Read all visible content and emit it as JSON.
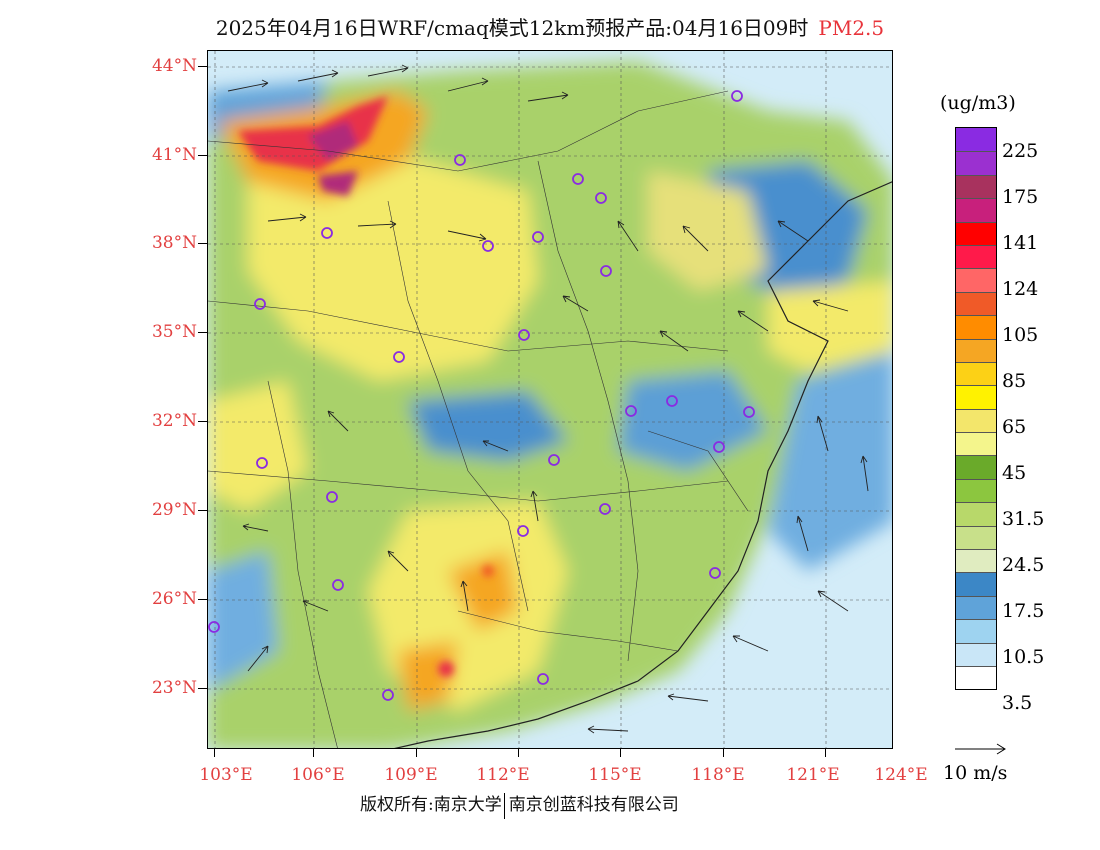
{
  "title": {
    "main": "2025年04月16日WRF/cmaq模式12km预报产品:04月16日09时",
    "pollutant": "PM2.5",
    "pollutant_color": "#e8333a"
  },
  "latitude_labels": [
    "44°N",
    "41°N",
    "38°N",
    "35°N",
    "32°N",
    "29°N",
    "26°N",
    "23°N"
  ],
  "longitude_labels": [
    "103°E",
    "106°E",
    "109°E",
    "112°E",
    "115°E",
    "118°E",
    "121°E",
    "124°E"
  ],
  "legend": {
    "unit": "(ug/m3)",
    "labels": [
      "225",
      "175",
      "141",
      "124",
      "105",
      "85",
      "65",
      "45",
      "31.5",
      "24.5",
      "17.5",
      "10.5",
      "3.5"
    ],
    "colors": [
      "#8a2be2",
      "#9b30d0",
      "#a8325e",
      "#c8207c",
      "#ff0000",
      "#ff1a4a",
      "#ff6666",
      "#f05a28",
      "#ff8c00",
      "#f5a623",
      "#fcd116",
      "#fff200",
      "#f3e66b",
      "#f4f58c",
      "#6aaa2a",
      "#8cc63f",
      "#b8d86a",
      "#c8e08a",
      "#e0ecc0",
      "#3c87c6",
      "#5fa3d9",
      "#9ed3f0",
      "#c9e6f7",
      "#ffffff"
    ]
  },
  "wind_scale": {
    "label": "10 m/s"
  },
  "footer": {
    "copyright": "版权所有:南京大学",
    "company": "南京创蓝科技有限公司"
  },
  "map_colors": {
    "sea": "#cfe8f5",
    "low": "#5b9fd6",
    "mid_green": "#b8d86a",
    "green": "#7fbf3f",
    "yellow": "#f3ea6b",
    "orange": "#f5a623",
    "red": "#e8334a",
    "purple": "#b02a7a",
    "boundary": "#333333",
    "city_marker": "#8a2be2"
  }
}
